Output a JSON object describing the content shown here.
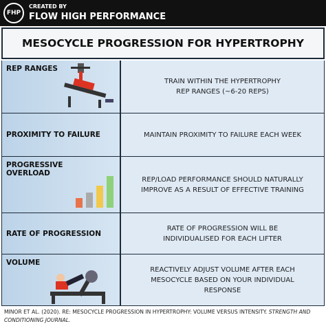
{
  "header": {
    "logo": "FHP",
    "created_by": "CREATED BY",
    "brand": "FLOW HIGH PERFORMANCE"
  },
  "title": "MESOCYCLE PROGRESSION FOR HYPERTROPHY",
  "rows": [
    {
      "label": [
        "REP RANGES"
      ],
      "description": [
        "TRAIN WITHIN THE HYPERTROPHY",
        "REP RANGES (~6-20 REPS)"
      ]
    },
    {
      "label": [
        "PROXIMITY TO FAILURE"
      ],
      "description": [
        "MAINTAIN PROXIMITY TO FAILURE EACH WEEK"
      ]
    },
    {
      "label": [
        "PROGRESSIVE",
        "OVERLOAD"
      ],
      "description": [
        "REP/LOAD PERFORMANCE SHOULD NATURALLY",
        "IMPROVE AS A RESULT OF EFFECTIVE TRAINING"
      ]
    },
    {
      "label": [
        "RATE OF PROGRESSION"
      ],
      "description": [
        "RATE OF PROGRESSION WILL BE",
        "INDIVIDUALISED FOR EACH LIFTER"
      ]
    },
    {
      "label": [
        "VOLUME"
      ],
      "description": [
        "REACTIVELY ADJUST VOLUME AFTER EACH",
        "MESOCYCLE BASED ON YOUR INDIVIDUAL",
        "RESPONSE"
      ]
    }
  ],
  "footer": {
    "citation": "MINOR ET AL. (2020). RE: MESOCYCLE PROGRESSION IN HYPERTROPHY: VOLUME VERSUS INTENSITY.",
    "journal": "STRENGTH AND CONDITIONING JOURNAL."
  }
}
